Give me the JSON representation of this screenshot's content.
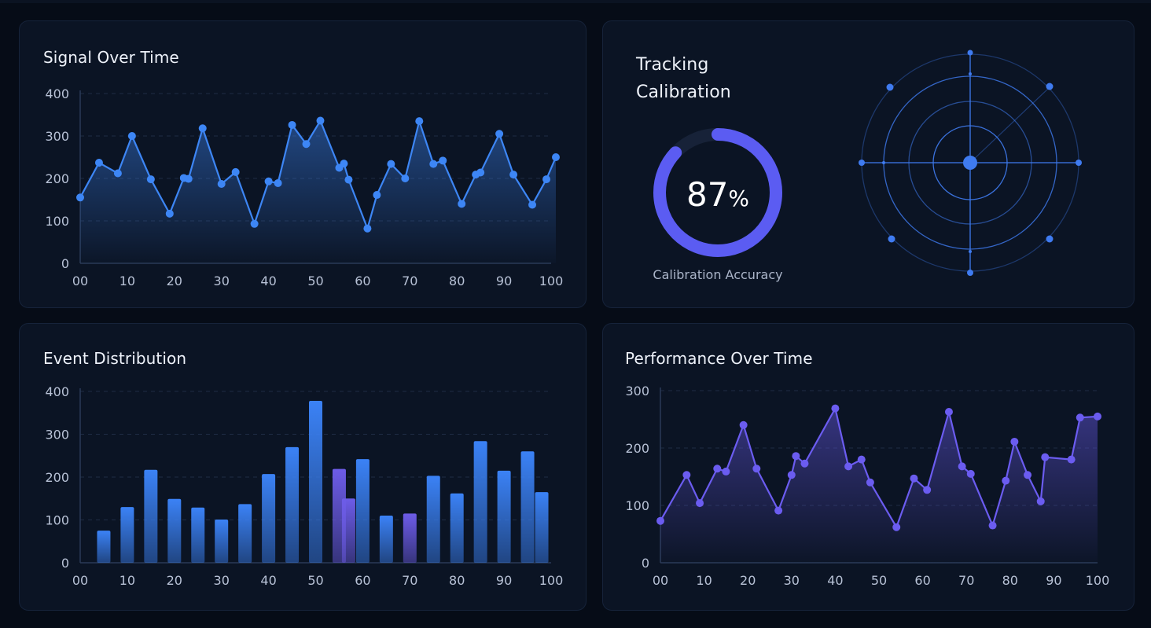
{
  "panels": {
    "signal": {
      "title": "Signal Over Time"
    },
    "tracking": {
      "title_line1": "Tracking",
      "title_line2": "Calibration",
      "gauge_value": 87,
      "gauge_number": "87",
      "gauge_unit": "%",
      "gauge_label": "Calibration Accuracy"
    },
    "events": {
      "title": "Event Distribution"
    },
    "performance": {
      "title": "Performance Over Time"
    }
  },
  "colors": {
    "background": "#060c17",
    "panel": "#0b1424",
    "signal_line": "#3d86f5",
    "performance_line": "#6b5cf0",
    "bar_blue": "#3b82f6",
    "bar_purple": "#6d5ce8",
    "gauge_arc": "#5b5cf2",
    "radar": "#3f7bf0"
  },
  "chart_data": [
    {
      "type": "line",
      "title": "Signal Over Time",
      "x": [
        0,
        4,
        8,
        11,
        15,
        19,
        22,
        23,
        26,
        30,
        33,
        37,
        40,
        42,
        45,
        48,
        51,
        55,
        56,
        57,
        61,
        63,
        66,
        69,
        72,
        75,
        77,
        81,
        84,
        85,
        89,
        92,
        96,
        99,
        101
      ],
      "y": [
        155,
        237,
        212,
        300,
        198,
        117,
        201,
        199,
        318,
        187,
        215,
        93,
        193,
        189,
        326,
        281,
        336,
        225,
        235,
        197,
        82,
        161,
        234,
        200,
        335,
        234,
        242,
        140,
        209,
        214,
        305,
        209,
        138,
        198,
        250
      ],
      "xticks": [
        "00",
        "10",
        "20",
        "30",
        "40",
        "50",
        "60",
        "70",
        "80",
        "90",
        "100"
      ],
      "xtick_values": [
        0,
        10,
        20,
        30,
        40,
        50,
        60,
        70,
        80,
        90,
        100
      ],
      "yticks": [
        "0",
        "100",
        "200",
        "300",
        "400"
      ],
      "ylim": [
        0,
        400
      ],
      "xlim": [
        0,
        100
      ],
      "grid": true,
      "area_fill": true
    },
    {
      "type": "bar",
      "title": "Event Distribution",
      "x": [
        5,
        10,
        15,
        20,
        25,
        30,
        35,
        40,
        45,
        50,
        55,
        57,
        60,
        65,
        70,
        75,
        80,
        85,
        90,
        95,
        98
      ],
      "values": [
        75,
        130,
        217,
        149,
        129,
        101,
        137,
        207,
        270,
        378,
        219,
        150,
        242,
        110,
        115,
        203,
        162,
        284,
        215,
        260,
        165
      ],
      "colors": [
        "blue",
        "blue",
        "blue",
        "blue",
        "blue",
        "blue",
        "blue",
        "blue",
        "blue",
        "blue",
        "purple",
        "purple",
        "blue",
        "blue",
        "purple",
        "blue",
        "blue",
        "blue",
        "blue",
        "blue",
        "blue"
      ],
      "xticks": [
        "00",
        "10",
        "20",
        "30",
        "40",
        "50",
        "60",
        "70",
        "80",
        "90",
        "100"
      ],
      "xtick_values": [
        0,
        10,
        20,
        30,
        40,
        50,
        60,
        70,
        80,
        90,
        100
      ],
      "yticks": [
        "0",
        "100",
        "200",
        "300",
        "400"
      ],
      "ylim": [
        0,
        400
      ],
      "xlim": [
        0,
        100
      ],
      "grid": true
    },
    {
      "type": "line",
      "title": "Performance Over Time",
      "x": [
        0,
        6,
        9,
        13,
        15,
        19,
        22,
        27,
        30,
        31,
        33,
        40,
        43,
        46,
        48,
        54,
        58,
        61,
        66,
        69,
        71,
        76,
        79,
        81,
        84,
        87,
        88,
        94,
        96,
        100
      ],
      "y": [
        73,
        153,
        104,
        164,
        159,
        240,
        164,
        91,
        153,
        186,
        173,
        269,
        168,
        180,
        140,
        62,
        147,
        127,
        263,
        168,
        155,
        65,
        143,
        211,
        153,
        107,
        184,
        180,
        253,
        255
      ],
      "xticks": [
        "00",
        "10",
        "20",
        "30",
        "40",
        "50",
        "60",
        "70",
        "80",
        "90",
        "100"
      ],
      "xtick_values": [
        0,
        10,
        20,
        30,
        40,
        50,
        60,
        70,
        80,
        90,
        100
      ],
      "yticks": [
        "0",
        "100",
        "200",
        "300"
      ],
      "ylim": [
        0,
        300
      ],
      "xlim": [
        0,
        100
      ],
      "grid": true,
      "area_fill": true
    }
  ]
}
